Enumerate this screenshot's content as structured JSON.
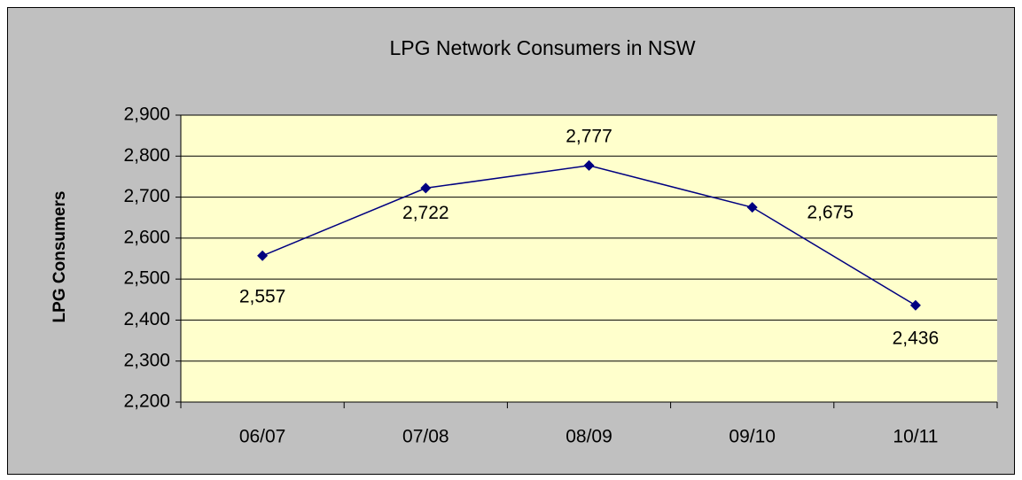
{
  "chart_data": {
    "type": "line",
    "title": "LPG Network Consumers in NSW",
    "y_label": "LPG Consumers",
    "categories": [
      "06/07",
      "07/08",
      "08/09",
      "09/10",
      "10/11"
    ],
    "values": [
      2557,
      2722,
      2777,
      2675,
      2436
    ],
    "value_labels": [
      "2,557",
      "2,722",
      "2,777",
      "2,675",
      "2,436"
    ],
    "color": "#000080",
    "ylim": [
      2200,
      2900
    ],
    "yticks": [
      {
        "value": 2200,
        "label": "2,200"
      },
      {
        "value": 2300,
        "label": "2,300"
      },
      {
        "value": 2400,
        "label": "2,400"
      },
      {
        "value": 2500,
        "label": "2,500"
      },
      {
        "value": 2600,
        "label": "2,600"
      },
      {
        "value": 2700,
        "label": "2,700"
      },
      {
        "value": 2800,
        "label": "2,800"
      },
      {
        "value": 2900,
        "label": "2,900"
      }
    ],
    "grid": true
  }
}
